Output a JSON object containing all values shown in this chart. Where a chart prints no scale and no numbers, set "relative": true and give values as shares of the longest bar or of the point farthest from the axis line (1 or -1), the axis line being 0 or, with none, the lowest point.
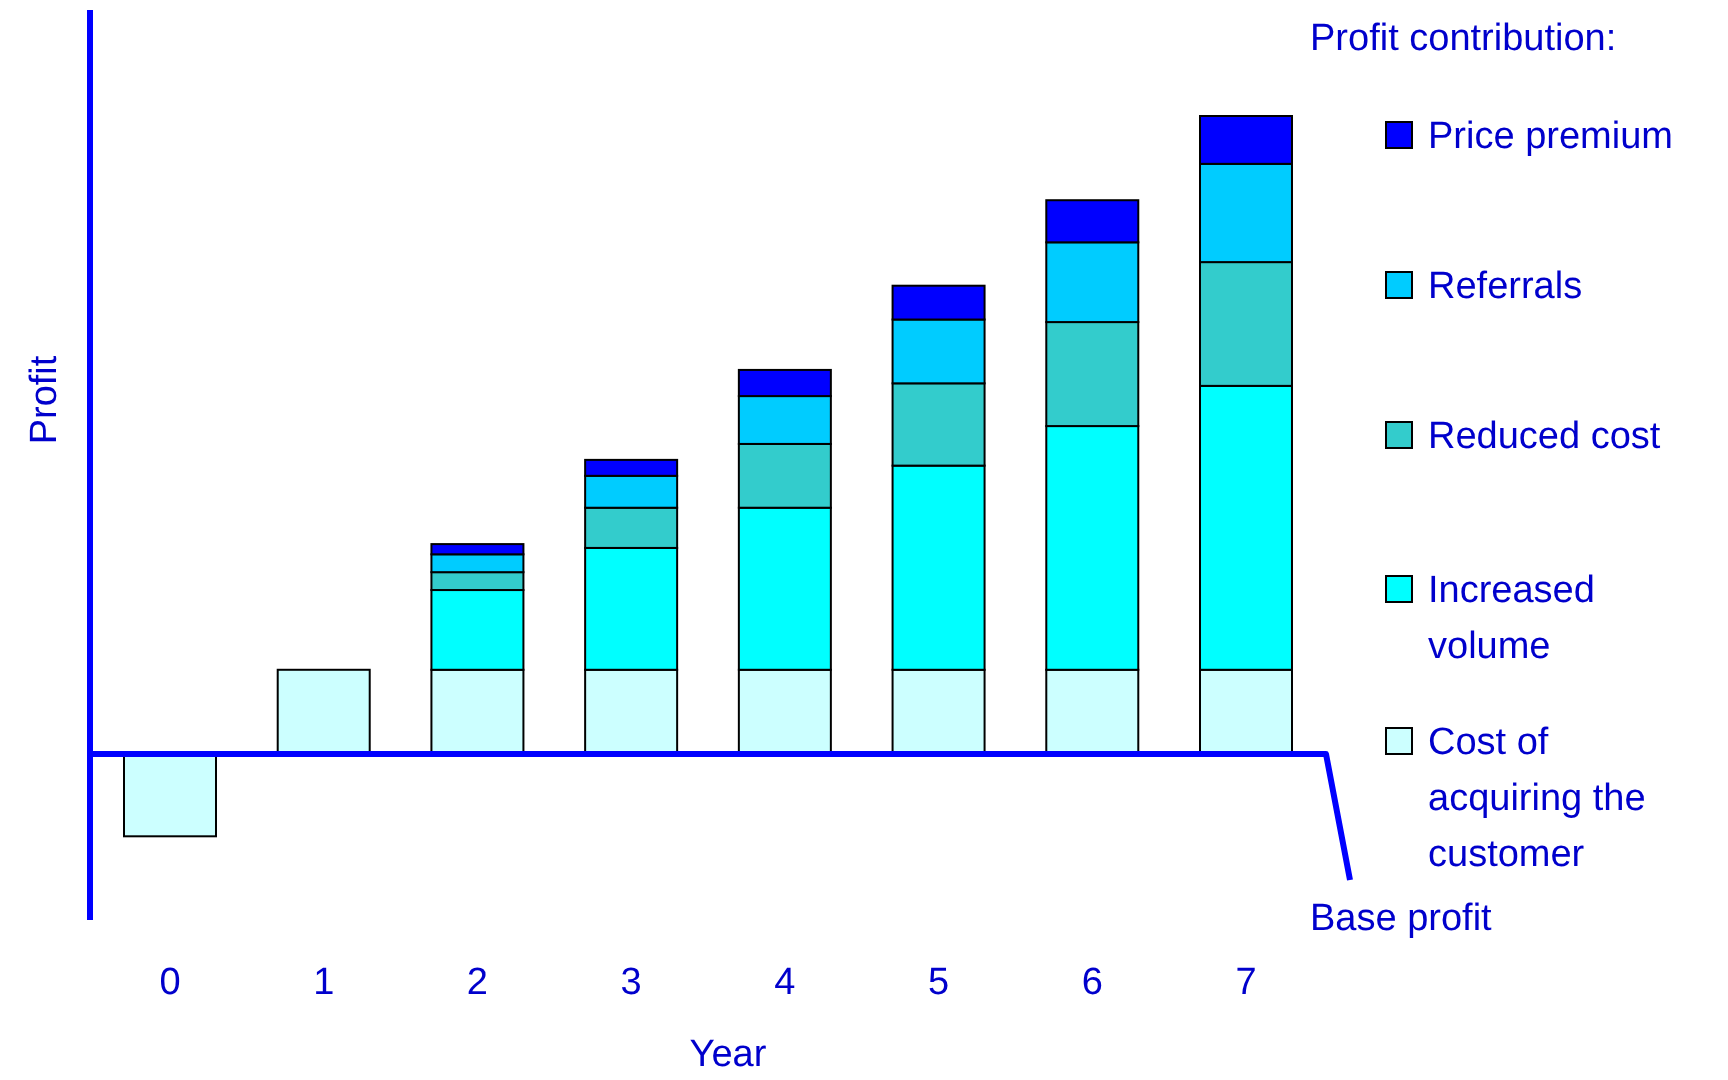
{
  "chart_data": {
    "type": "bar",
    "stacked": true,
    "relative": true,
    "xlabel": "Year",
    "ylabel": "Profit",
    "legend_title": "Profit contribution:",
    "legend": "right",
    "categories": [
      "0",
      "1",
      "2",
      "3",
      "4",
      "5",
      "6",
      "7"
    ],
    "series": [
      {
        "name": "Cost of acquiring the customer",
        "color": "#ccffff",
        "values": [
          -0.129,
          0.132,
          0.132,
          0.132,
          0.132,
          0.132,
          0.132,
          0.132
        ]
      },
      {
        "name": "Increased volume",
        "color": "#00ffff",
        "values": [
          null,
          null,
          0.125,
          0.191,
          0.254,
          0.32,
          0.382,
          0.445
        ]
      },
      {
        "name": "Reduced cost",
        "color": "#33cccc",
        "values": [
          null,
          null,
          0.028,
          0.063,
          0.1,
          0.129,
          0.163,
          0.194
        ]
      },
      {
        "name": "Referrals",
        "color": "#00ccff",
        "values": [
          null,
          null,
          0.028,
          0.05,
          0.075,
          0.1,
          0.125,
          0.154
        ]
      },
      {
        "name": "Price premium",
        "color": "#0000ff",
        "values": [
          null,
          null,
          0.016,
          0.025,
          0.041,
          0.053,
          0.066,
          0.075
        ]
      }
    ],
    "ref_lines": [
      {
        "axis": "y",
        "value": 0,
        "label": "Base profit",
        "color": "#0000ff"
      }
    ]
  }
}
